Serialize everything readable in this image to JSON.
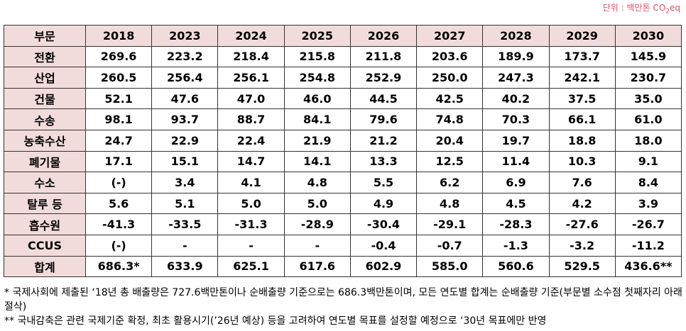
{
  "unit": {
    "prefix": "단위 : 백만톤 CO",
    "sub": "2",
    "suffix": "eq"
  },
  "table": {
    "header": [
      "부문",
      "2018",
      "2023",
      "2024",
      "2025",
      "2026",
      "2027",
      "2028",
      "2029",
      "2030"
    ],
    "rows": [
      [
        "전환",
        "269.6",
        "223.2",
        "218.4",
        "215.8",
        "211.8",
        "203.6",
        "189.9",
        "173.7",
        "145.9"
      ],
      [
        "산업",
        "260.5",
        "256.4",
        "256.1",
        "254.8",
        "252.9",
        "250.0",
        "247.3",
        "242.1",
        "230.7"
      ],
      [
        "건물",
        "52.1",
        "47.6",
        "47.0",
        "46.0",
        "44.5",
        "42.5",
        "40.2",
        "37.5",
        "35.0"
      ],
      [
        "수송",
        "98.1",
        "93.7",
        "88.7",
        "84.1",
        "79.6",
        "74.8",
        "70.3",
        "66.1",
        "61.0"
      ],
      [
        "농축수산",
        "24.7",
        "22.9",
        "22.4",
        "21.9",
        "21.2",
        "20.4",
        "19.7",
        "18.8",
        "18.0"
      ],
      [
        "폐기물",
        "17.1",
        "15.1",
        "14.7",
        "14.1",
        "13.3",
        "12.5",
        "11.4",
        "10.3",
        "9.1"
      ],
      [
        "수소",
        "(-)",
        "3.4",
        "4.1",
        "4.8",
        "5.5",
        "6.2",
        "6.9",
        "7.6",
        "8.4"
      ],
      [
        "탈루 등",
        "5.6",
        "5.1",
        "5.0",
        "5.0",
        "4.9",
        "4.8",
        "4.5",
        "4.2",
        "3.9"
      ],
      [
        "흡수원",
        "-41.3",
        "-33.5",
        "-31.3",
        "-28.9",
        "-30.4",
        "-29.1",
        "-28.3",
        "-27.6",
        "-26.7"
      ],
      [
        "CCUS",
        "(-)",
        "-",
        "-",
        "-",
        "-0.4",
        "-0.7",
        "-1.3",
        "-3.2",
        "-11.2"
      ],
      [
        "합계",
        "686.3*",
        "633.9",
        "625.1",
        "617.6",
        "602.9",
        "585.0",
        "560.6",
        "529.5",
        "436.6**"
      ]
    ]
  },
  "notes": [
    "* 국제사회에 제출된 ‘18년 총 배출량은 727.6백만톤이나 순배출량 기준으로는 686.3백만톤이며, 모든 연도별 합계는 순배출량 기준(부문별 소수점 첫째자리 아래 절삭)",
    "** 국내감축은 관련 국제기준 확정, 최초 활용시기(’26년 예상) 등을 고려하여 연도별 목표를 설정할 예정으로 ‘30년 목표에만 반영"
  ]
}
